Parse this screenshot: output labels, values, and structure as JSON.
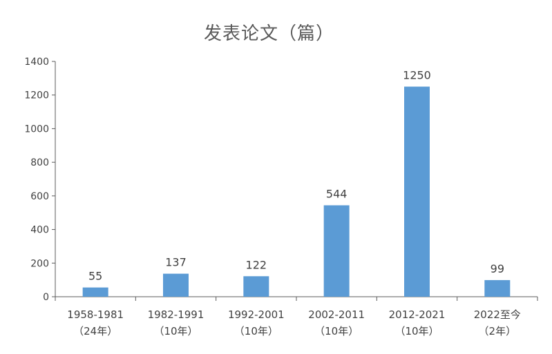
{
  "chart_data": {
    "type": "bar",
    "title": "发表论文（篇）",
    "categories": [
      {
        "line1": "1958-1981",
        "line2": "（24年）"
      },
      {
        "line1": "1982-1991",
        "line2": "（10年）"
      },
      {
        "line1": "1992-2001",
        "line2": "（10年）"
      },
      {
        "line1": "2002-2011",
        "line2": "（10年）"
      },
      {
        "line1": "2012-2021",
        "line2": "（10年）"
      },
      {
        "line1": "2022至今",
        "line2": "（2年）"
      }
    ],
    "values": [
      55,
      137,
      122,
      544,
      1250,
      99
    ],
    "data_labels": [
      "55",
      "137",
      "122",
      "544",
      "1250",
      "99"
    ],
    "y_ticks": [
      0,
      200,
      400,
      600,
      800,
      1000,
      1200,
      1400
    ],
    "ylim": [
      0,
      1400
    ],
    "xlabel": "",
    "ylabel": "",
    "bar_color": "#5b9bd5",
    "grid": false,
    "legend": "none"
  }
}
